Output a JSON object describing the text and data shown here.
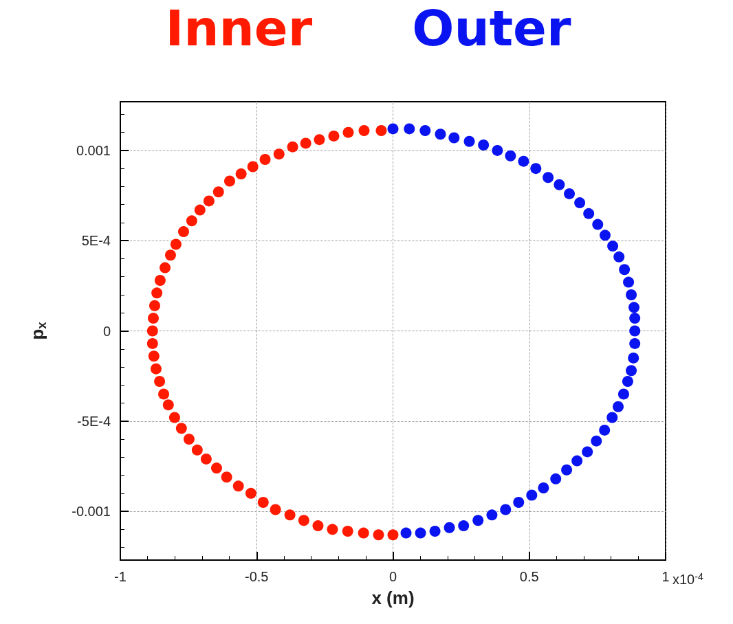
{
  "chart_data": {
    "type": "scatter",
    "xlabel": "x (m)",
    "ylabel": "p$_{x}$",
    "annotations": [
      "x10$^{-4}$"
    ],
    "xlim": [
      -1,
      1
    ],
    "xticks": [
      -1,
      -0.5,
      0,
      0.5,
      1
    ],
    "ylim": [
      -0.00127,
      0.00127
    ],
    "yticks": [
      -0.001,
      {
        "value": -0.0005,
        "label": "-5E-4"
      },
      0,
      {
        "value": 0.0005,
        "label": "5E-4"
      },
      0.001
    ],
    "grid": true,
    "legend": "top",
    "marker": "circle",
    "series": [
      {
        "name": "Inner",
        "color": "#ff1a00",
        "x": [
          -0.043,
          -0.106,
          -0.164,
          -0.217,
          -0.27,
          -0.32,
          -0.368,
          -0.418,
          -0.469,
          -0.514,
          -0.557,
          -0.599,
          -0.64,
          -0.675,
          -0.708,
          -0.738,
          -0.768,
          -0.796,
          -0.816,
          -0.836,
          -0.854,
          -0.866,
          -0.874,
          -0.879,
          -0.882,
          -0.882,
          -0.877,
          -0.869,
          -0.856,
          -0.841,
          -0.824,
          -0.801,
          -0.776,
          -0.748,
          -0.718,
          -0.685,
          -0.647,
          -0.61,
          -0.567,
          -0.521,
          -0.476,
          -0.431,
          -0.378,
          -0.327,
          -0.275,
          -0.222,
          -0.166,
          -0.108,
          -0.053,
          0
        ],
        "values": [
          0.00111,
          0.00111,
          0.0011,
          0.00108,
          0.00106,
          0.00104,
          0.00102,
          0.00098,
          0.00095,
          0.00091,
          0.00087,
          0.00083,
          0.00077,
          0.00072,
          0.00067,
          0.00061,
          0.00055,
          0.00048,
          0.00042,
          0.00035,
          0.00028,
          0.00021,
          0.00014,
          7e-05,
          0,
          -7e-05,
          -0.00014,
          -0.00021,
          -0.00028,
          -0.00035,
          -0.00041,
          -0.00048,
          -0.00054,
          -0.0006,
          -0.00066,
          -0.00071,
          -0.00076,
          -0.00081,
          -0.00086,
          -0.0009,
          -0.00095,
          -0.00099,
          -0.00102,
          -0.00105,
          -0.00108,
          -0.0011,
          -0.00111,
          -0.00112,
          -0.00113,
          -0.00113
        ]
      },
      {
        "name": "Outer",
        "color": "#0a14f0",
        "x": [
          0,
          0.06,
          0.118,
          0.174,
          0.224,
          0.28,
          0.332,
          0.383,
          0.431,
          0.479,
          0.524,
          0.569,
          0.61,
          0.647,
          0.685,
          0.718,
          0.751,
          0.778,
          0.806,
          0.829,
          0.849,
          0.864,
          0.874,
          0.884,
          0.887,
          0.887,
          0.887,
          0.882,
          0.874,
          0.861,
          0.846,
          0.826,
          0.804,
          0.776,
          0.746,
          0.713,
          0.675,
          0.637,
          0.597,
          0.552,
          0.509,
          0.461,
          0.413,
          0.363,
          0.312,
          0.259,
          0.207,
          0.154,
          0.101,
          0.048
        ],
        "values": [
          0.00112,
          0.00112,
          0.00111,
          0.00109,
          0.00107,
          0.00105,
          0.00103,
          0.001,
          0.00097,
          0.00094,
          0.0009,
          0.00085,
          0.00081,
          0.00076,
          0.00071,
          0.00065,
          0.00059,
          0.00053,
          0.00047,
          0.00041,
          0.00034,
          0.00027,
          0.0002,
          0.00013,
          7e-05,
          0,
          -7e-05,
          -0.00015,
          -0.00022,
          -0.00028,
          -0.00035,
          -0.00042,
          -0.00048,
          -0.00055,
          -0.00061,
          -0.00067,
          -0.00072,
          -0.00077,
          -0.00082,
          -0.00087,
          -0.00091,
          -0.00095,
          -0.00099,
          -0.00102,
          -0.00105,
          -0.00108,
          -0.00109,
          -0.00111,
          -0.00112,
          -0.00112
        ]
      }
    ]
  }
}
